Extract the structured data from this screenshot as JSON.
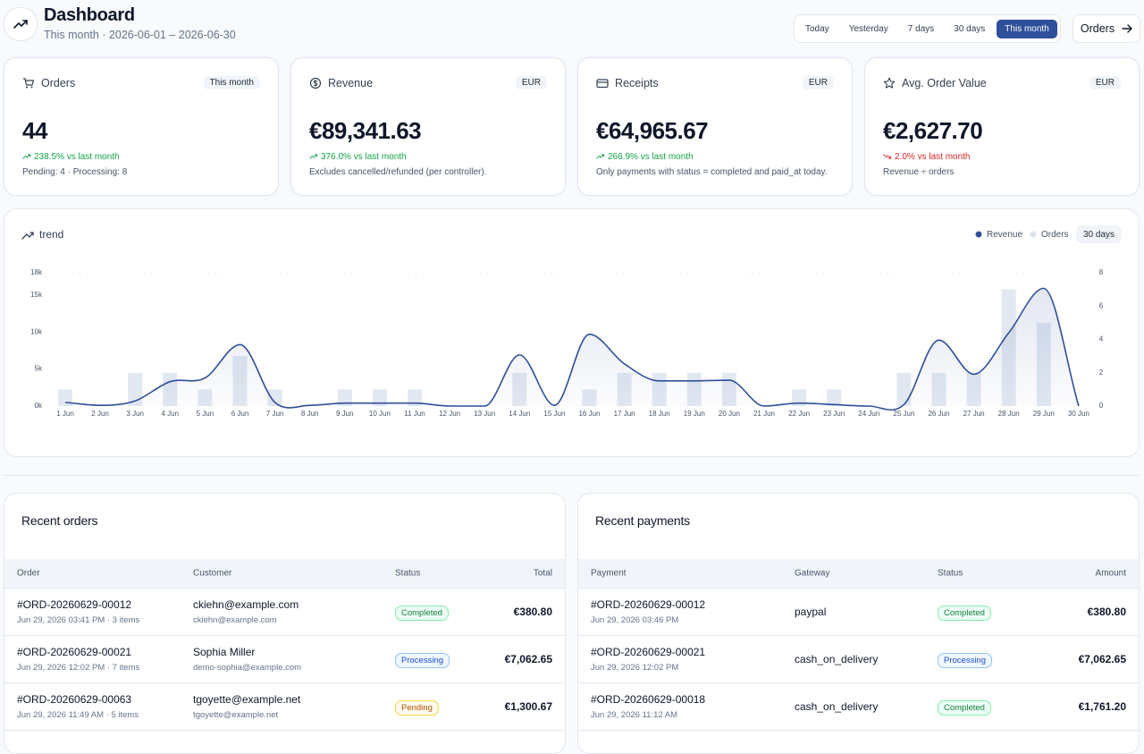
{
  "header": {
    "title": "Dashboard",
    "subtitle": "This month · 2026-06-01 – 2026-06-30",
    "ranges": [
      {
        "label": "Today",
        "active": false
      },
      {
        "label": "Yesterday",
        "active": false
      },
      {
        "label": "7 days",
        "active": false
      },
      {
        "label": "30 days",
        "active": false
      },
      {
        "label": "This month",
        "active": true
      }
    ],
    "button": "Orders"
  },
  "cards": [
    {
      "label": "Orders",
      "badge": "This month",
      "value": "44",
      "change": "238.5% vs last month",
      "change_direction": "up",
      "change_color": "#16a34a",
      "note": "Pending: 4 · Processing: 8"
    },
    {
      "label": "Revenue",
      "badge": "EUR",
      "value": "€89,341.63",
      "change": "376.0% vs last month",
      "change_direction": "up",
      "change_color": "#16a34a",
      "note": "Excludes cancelled/refunded (per controller)."
    },
    {
      "label": "Receipts",
      "badge": "EUR",
      "value": "€64,965.67",
      "change": "266.9% vs last month",
      "change_direction": "up",
      "change_color": "#16a34a",
      "note": "Only payments with status = completed and paid_at today."
    },
    {
      "label": "Avg. Order Value",
      "badge": "EUR",
      "value": "€2,627.70",
      "change": "2.0% vs last month",
      "change_direction": "down",
      "change_color": "#dc2626",
      "note": "Revenue ÷ orders"
    }
  ],
  "chart_data": {
    "type": "combo",
    "title": "trend",
    "badge": "30 days",
    "categories": [
      "1 Jun",
      "2 Jun",
      "3 Jun",
      "4 Jun",
      "5 Jun",
      "6 Jun",
      "7 Jun",
      "8 Jun",
      "9 Jun",
      "10 Jun",
      "11 Jun",
      "12 Jun",
      "13 Jun",
      "14 Jun",
      "15 Jun",
      "16 Jun",
      "17 Jun",
      "18 Jun",
      "19 Jun",
      "20 Jun",
      "21 Jun",
      "22 Jun",
      "23 Jun",
      "24 Jun",
      "25 Jun",
      "26 Jun",
      "27 Jun",
      "28 Jun",
      "29 Jun",
      "30 Jun"
    ],
    "ylim": [
      0,
      18000
    ],
    "yticks": [
      {
        "value": 0,
        "label": "0k"
      },
      {
        "value": 5000,
        "label": "5k"
      },
      {
        "value": 10000,
        "label": "10k"
      },
      {
        "value": 15000,
        "label": "15k"
      },
      {
        "value": 18000,
        "label": "18k"
      }
    ],
    "y2lim": [
      0,
      8
    ],
    "y2ticks": [
      0,
      2,
      4,
      6,
      8
    ],
    "grid": true,
    "series": [
      {
        "name": "Revenue",
        "type": "line",
        "color": "#2f4f9a",
        "values": [
          500,
          100,
          700,
          3300,
          3800,
          8300,
          500,
          100,
          400,
          400,
          400,
          0,
          0,
          6900,
          100,
          9700,
          5700,
          3400,
          3400,
          3500,
          0,
          400,
          200,
          0,
          200,
          8900,
          4300,
          9900,
          15900,
          0
        ]
      },
      {
        "name": "Orders",
        "type": "bar",
        "axis": "y2",
        "color": "#e2e8f2",
        "values": [
          1,
          0,
          2,
          2,
          1,
          3,
          1,
          0,
          1,
          1,
          1,
          0,
          0,
          2,
          0,
          1,
          2,
          2,
          2,
          2,
          0,
          1,
          1,
          0,
          2,
          2,
          2,
          7,
          5,
          0
        ]
      }
    ]
  },
  "recent_orders": {
    "title": "Recent orders",
    "columns": [
      "Order",
      "Customer",
      "Status",
      "Total"
    ],
    "rows": [
      {
        "order": "#ORD-20260629-00012",
        "meta": "Jun 29, 2026 03:41 PM · 3 items",
        "customer": "ckiehn@example.com",
        "email": "ckiehn@example.com",
        "status": "Completed",
        "status_tone": "green",
        "total": "€380.80"
      },
      {
        "order": "#ORD-20260629-00021",
        "meta": "Jun 29, 2026 12:02 PM · 7 items",
        "customer": "Sophia Miller",
        "email": "demo-sophia@example.com",
        "status": "Processing",
        "status_tone": "blue",
        "total": "€7,062.65"
      },
      {
        "order": "#ORD-20260629-00063",
        "meta": "Jun 29, 2026 11:49 AM · 5 items",
        "customer": "tgoyette@example.net",
        "email": "tgoyette@example.net",
        "status": "Pending",
        "status_tone": "amber",
        "total": "€1,300.67"
      }
    ]
  },
  "recent_payments": {
    "title": "Recent payments",
    "columns": [
      "Payment",
      "Gateway",
      "Status",
      "Amount"
    ],
    "rows": [
      {
        "payment": "#ORD-20260629-00012",
        "meta": "Jun 29, 2026 03:46 PM",
        "gateway": "paypal",
        "status": "Completed",
        "status_tone": "green",
        "amount": "€380.80"
      },
      {
        "payment": "#ORD-20260629-00021",
        "meta": "Jun 29, 2026 12:02 PM",
        "gateway": "cash_on_delivery",
        "status": "Processing",
        "status_tone": "blue",
        "amount": "€7,062.65"
      },
      {
        "payment": "#ORD-20260629-00018",
        "meta": "Jun 29, 2026 11:12 AM",
        "gateway": "cash_on_delivery",
        "status": "Completed",
        "status_tone": "green",
        "amount": "€1,761.20"
      }
    ]
  }
}
